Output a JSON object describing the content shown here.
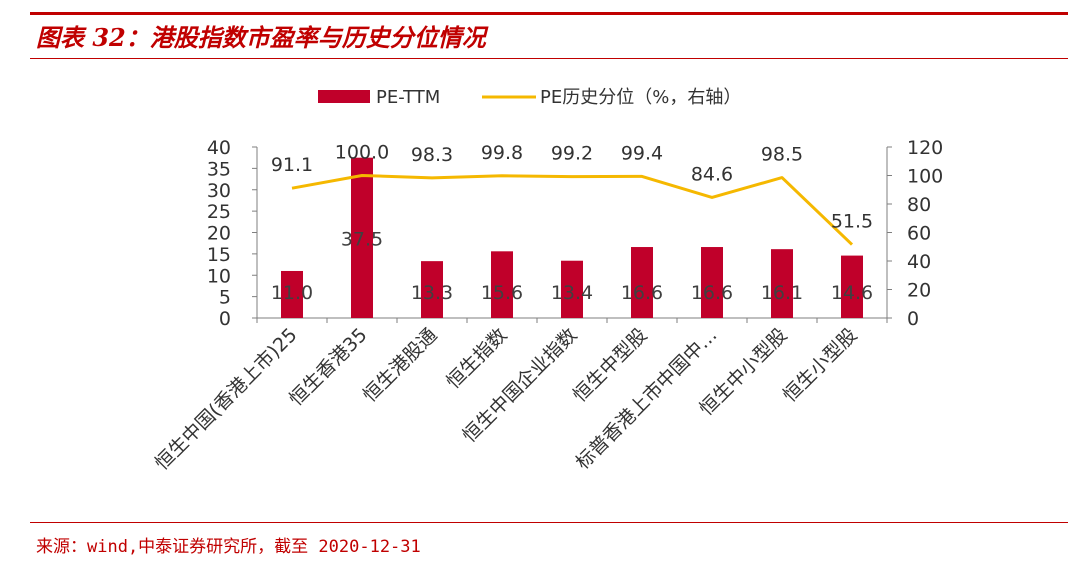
{
  "header": {
    "title": "图表 32：港股指数市盈率与历史分位情况"
  },
  "footer": {
    "source": "来源：wind,中泰证券研究所，截至 2020-12-31"
  },
  "colors": {
    "brand": "#c00000",
    "bar": "#c0002a",
    "line": "#f5b800"
  },
  "chart_data": {
    "type": "bar",
    "title": "",
    "categories": [
      "恒生中国(香港上市)25",
      "恒生香港35",
      "恒生港股通",
      "恒生指数",
      "恒生中国企业指数",
      "恒生中型股",
      "标普香港上市中国中…",
      "恒生中小型股",
      "恒生小型股"
    ],
    "series": [
      {
        "name": "PE-TTM",
        "type": "bar",
        "axis": "left",
        "values": [
          11.0,
          37.5,
          13.3,
          15.6,
          13.4,
          16.6,
          16.6,
          16.1,
          14.6
        ],
        "labels": [
          "11.0",
          "37.5",
          "13.3",
          "15.6",
          "13.4",
          "16.6",
          "16.6",
          "16.1",
          "14.6"
        ]
      },
      {
        "name": "PE历史分位（%，右轴）",
        "type": "line",
        "axis": "right",
        "values": [
          91.1,
          100.0,
          98.3,
          99.8,
          99.2,
          99.4,
          84.6,
          98.5,
          51.5
        ],
        "labels": [
          "91.1",
          "100.0",
          "98.3",
          "99.8",
          "99.2",
          "99.4",
          "84.6",
          "98.5",
          "51.5"
        ]
      }
    ],
    "y_left": {
      "min": 0,
      "max": 40,
      "ticks": [
        "0",
        "5",
        "10",
        "15",
        "20",
        "25",
        "30",
        "35",
        "40"
      ]
    },
    "y_right": {
      "min": 0,
      "max": 120,
      "ticks": [
        "0",
        "20",
        "40",
        "60",
        "80",
        "100",
        "120"
      ]
    },
    "legend": "top",
    "grid": false
  }
}
